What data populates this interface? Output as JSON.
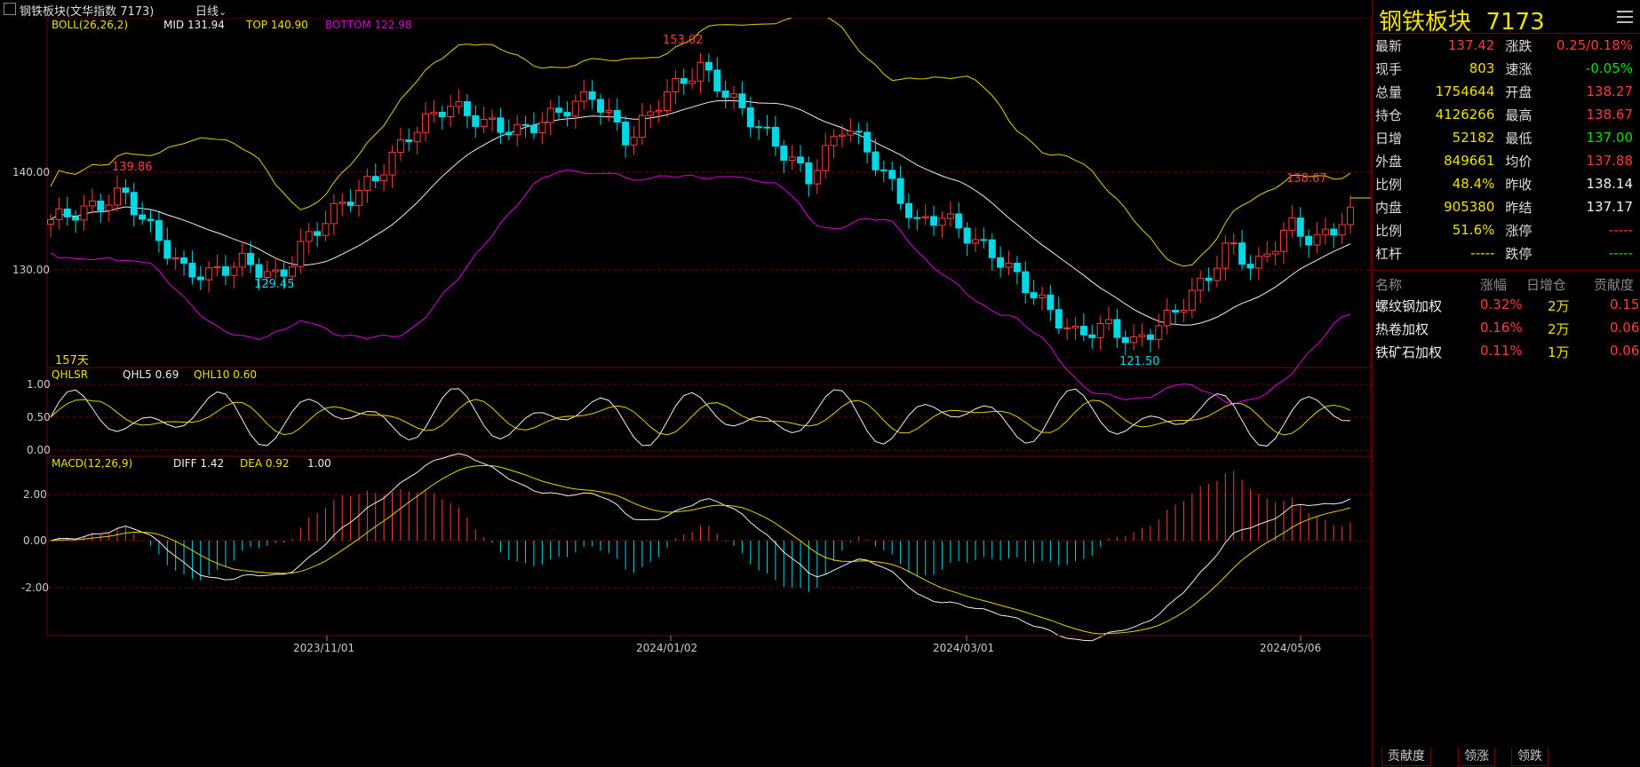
{
  "topbar": {
    "title": "钢铁板块(文华指数 7173)",
    "period": "日线",
    "period_icon": "chevron-down-icon"
  },
  "colors": {
    "up": "#ff3b3b",
    "down": "#00d8e6",
    "mid": "#f0f0f0",
    "top": "#e6d200",
    "bottom": "#e000e0",
    "grid": "#700000",
    "label_yellow": "#f0e000"
  },
  "boll_panel": {
    "indicator": "BOLL(26,26,2)",
    "mid_label": "MID 131.94",
    "top_label": "TOP 140.90",
    "bottom_label": "BOTTOM 122.98",
    "y_ticks": [
      "140.00",
      "130.00"
    ],
    "high_marker": "153.02",
    "local_high_marker": "139.86",
    "low_marker": "129.45",
    "lowest_marker": "121.50",
    "last_high_marker": "138.67",
    "days_label": "157天"
  },
  "qhl_panel": {
    "indicator": "QHLSR",
    "qhl5_label": "QHL5 0.69",
    "qhl10_label": "QHL10 0.60",
    "y_ticks": [
      "1.00",
      "0.50",
      "0.00"
    ]
  },
  "macd_panel": {
    "indicator": "MACD(12,26,9)",
    "diff_label": "DIFF 1.42",
    "dea_label": "DEA 0.92",
    "macd_label": "1.00",
    "y_ticks": [
      "2.00",
      "0.00",
      "-2.00"
    ]
  },
  "x_axis": {
    "dates": [
      "2023/11/01",
      "2024/01/02",
      "2024/03/01",
      "2024/05/06"
    ]
  },
  "chart_data": [
    {
      "type": "candlestick",
      "title": "BOLL(26,26,2)",
      "ylim": [
        119.5,
        155.5
      ],
      "series_ohlc": [],
      "series": [
        {
          "name": "MID",
          "values": [
            131.94
          ]
        },
        {
          "name": "TOP",
          "values": [
            140.9
          ]
        },
        {
          "name": "BOTTOM",
          "values": [
            122.98
          ]
        }
      ]
    },
    {
      "type": "line",
      "title": "QHLSR",
      "ylim": [
        0,
        1
      ],
      "series": [
        {
          "name": "QHL5",
          "values": [
            0.69
          ]
        },
        {
          "name": "QHL10",
          "values": [
            0.6
          ]
        }
      ]
    },
    {
      "type": "bar",
      "title": "MACD(12,26,9)",
      "ylim": [
        -4,
        3
      ],
      "series": [
        {
          "name": "DIFF",
          "values": [
            1.42
          ]
        },
        {
          "name": "DEA",
          "values": [
            0.92
          ]
        }
      ]
    }
  ],
  "quote": {
    "name": "钢铁板块",
    "code": "7173",
    "rows": [
      {
        "l1": "最新",
        "v1": "137.42",
        "c1": "red",
        "l2": "涨跌",
        "v2": "0.25/0.18%",
        "c2": "red"
      },
      {
        "l1": "现手",
        "v1": "803",
        "c1": "yellow",
        "l2": "速涨",
        "v2": "-0.05%",
        "c2": "green"
      },
      {
        "l1": "总量",
        "v1": "1754644",
        "c1": "yellow",
        "l2": "开盘",
        "v2": "138.27",
        "c2": "red"
      },
      {
        "l1": "持仓",
        "v1": "4126266",
        "c1": "yellow",
        "l2": "最高",
        "v2": "138.67",
        "c2": "red"
      },
      {
        "l1": "日增",
        "v1": "52182",
        "c1": "yellow",
        "l2": "最低",
        "v2": "137.00",
        "c2": "green"
      },
      {
        "l1": "外盘",
        "v1": "849661",
        "c1": "yellow",
        "l2": "均价",
        "v2": "137.88",
        "c2": "red"
      },
      {
        "l1": "比例",
        "v1": "48.4%",
        "c1": "yellow",
        "l2": "昨收",
        "v2": "138.14",
        "c2": "white"
      },
      {
        "l1": "内盘",
        "v1": "905380",
        "c1": "yellow",
        "l2": "昨结",
        "v2": "137.17",
        "c2": "white"
      },
      {
        "l1": "比例",
        "v1": "51.6%",
        "c1": "yellow",
        "l2": "涨停",
        "v2": "-----",
        "c2": "red"
      },
      {
        "l1": "杠杆",
        "v1": "-----",
        "c1": "yellow",
        "l2": "跌停",
        "v2": "-----",
        "c2": "green"
      }
    ]
  },
  "contrib": {
    "headers": [
      "名称",
      "涨幅",
      "日增仓",
      "贡献度"
    ],
    "rows": [
      {
        "name": "螺纹钢加权",
        "pct": "0.32%",
        "inc": "2万",
        "contrib": "0.15"
      },
      {
        "name": "热卷加权",
        "pct": "0.16%",
        "inc": "2万",
        "contrib": "0.06"
      },
      {
        "name": "铁矿石加权",
        "pct": "0.11%",
        "inc": "1万",
        "contrib": "0.06"
      }
    ]
  },
  "bottom_tabs": [
    "贡献度",
    "领涨",
    "领跌"
  ]
}
